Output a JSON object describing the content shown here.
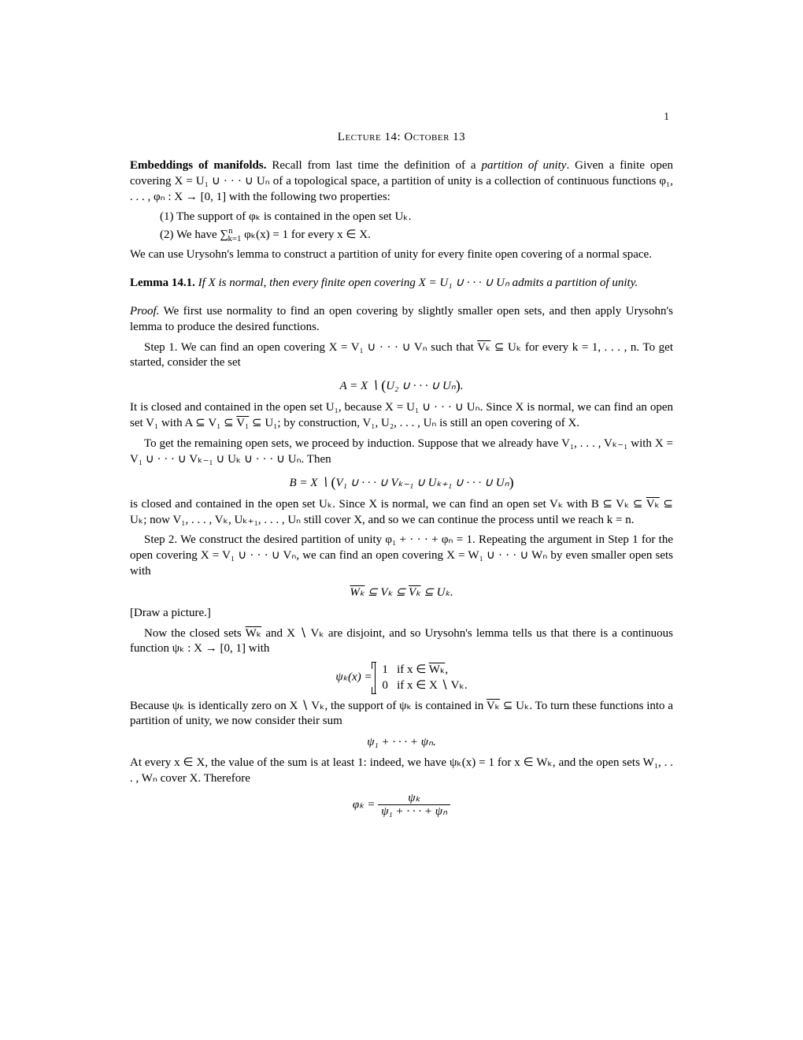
{
  "page_number": "1",
  "lecture_title": "Lecture 14: October 13",
  "section_head": "Embeddings of manifolds.",
  "intro_text": " Recall from last time the definition of a ",
  "intro_italic": "partition of unity",
  "intro_text2": ". Given a finite open covering X = U₁ ∪ · · · ∪ Uₙ of a topological space, a partition of unity is a collection of continuous functions φ₁, . . . , φₙ : X → [0, 1] with the following two properties:",
  "prop1": "(1) The support of φₖ is contained in the open set Uₖ.",
  "prop2_a": "(2) We have ∑",
  "prop2_b": " φₖ(x) = 1 for every x ∈ X.",
  "after_props": "We can use Urysohn's lemma to construct a partition of unity for every finite open covering of a normal space.",
  "lemma_label": "Lemma 14.1.",
  "lemma_text": " If X is normal, then every finite open covering X = U₁ ∪ · · · ∪ Uₙ admits a partition of unity.",
  "proof_label": "Proof.",
  "proof_p1": " We first use normality to find an open covering by slightly smaller open sets, and then apply Urysohn's lemma to produce the desired functions.",
  "step1_a": "Step 1. We can find an open covering X = V₁ ∪ · · · ∪ Vₙ such that ",
  "step1_vk": "Vₖ",
  "step1_b": " ⊆ Uₖ for every k = 1, . . . , n. To get started, consider the set",
  "display1_a": "A = X ∖ ",
  "display1_b": "U₂ ∪ · · · ∪ Uₙ",
  "p_after_d1_a": "It is closed and contained in the open set U₁, because X = U₁ ∪ · · · ∪ Uₙ. Since X is normal, we can find an open set V₁ with A ⊆ V₁ ⊆ ",
  "p_after_d1_v1": "V₁",
  "p_after_d1_b": " ⊆ U₁; by construction, V₁, U₂, . . . , Uₙ is still an open covering of X.",
  "induct_p": "To get the remaining open sets, we proceed by induction. Suppose that we already have V₁, . . . , Vₖ₋₁ with X = V₁ ∪ · · · ∪ Vₖ₋₁ ∪ Uₖ ∪ · · · ∪ Uₙ. Then",
  "display2_a": "B = X ∖ ",
  "display2_b": "V₁ ∪ · · · ∪ Vₖ₋₁ ∪ Uₖ₊₁ ∪ · · · ∪ Uₙ",
  "p_after_d2_a": "is closed and contained in the open set Uₖ. Since X is normal, we can find an open set Vₖ with B ⊆ Vₖ ⊆ ",
  "p_after_d2_vk": "Vₖ",
  "p_after_d2_b": " ⊆ Uₖ; now V₁, . . . , Vₖ, Uₖ₊₁, . . . , Uₙ still cover X, and so we can continue the process until we reach k = n.",
  "step2": "Step 2. We construct the desired partition of unity φ₁ + · · · + φₙ = 1. Repeating the argument in Step 1 for the open covering X = V₁ ∪ · · · ∪ Vₙ, we can find an open covering X = W₁ ∪ · · · ∪ Wₙ by even smaller open sets with",
  "display3_wk": "Wₖ",
  "display3_mid": " ⊆ Vₖ ⊆ ",
  "display3_vk": "Vₖ",
  "display3_end": " ⊆ Uₖ.",
  "draw_pic": "[Draw a picture.]",
  "urysohn_a": "Now the closed sets ",
  "urysohn_wk": "Wₖ",
  "urysohn_b": " and X ∖ Vₖ are disjoint, and so Urysohn's lemma tells us that there is a continuous function ψₖ : X → [0, 1] with",
  "cases_lhs": "ψₖ(x) = ",
  "case1_val": "1",
  "case1_cond_a": "if x ∈ ",
  "case1_cond_wk": "Wₖ",
  "case1_cond_b": ",",
  "case2_val": "0",
  "case2_cond": "if x ∈ X ∖ Vₖ.",
  "p_because_a": "Because ψₖ is identically zero on X ∖ Vₖ, the support of ψₖ is contained in ",
  "p_because_vk": "Vₖ",
  "p_because_b": " ⊆ Uₖ. To turn these functions into a partition of unity, we now consider their sum",
  "display_sum": "ψ₁ + · · · + ψₙ.",
  "p_atevery": "At every x ∈ X, the value of the sum is at least 1: indeed, we have ψₖ(x) = 1 for x ∈ Wₖ, and the open sets W₁, . . . , Wₙ cover X. Therefore",
  "final_lhs": "φₖ = ",
  "final_num": "ψₖ",
  "final_den": "ψ₁ + · · · + ψₙ"
}
